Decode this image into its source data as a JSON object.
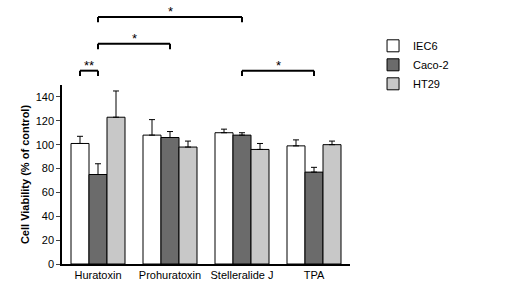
{
  "chart_data": {
    "type": "bar",
    "y_label": "Cell Viability (% of control)",
    "categories": [
      "Huratoxin",
      "Prohuratoxin",
      "Stelleralide J",
      "TPA"
    ],
    "series": [
      {
        "name": "IEC6",
        "color": "#ffffff",
        "values": [
          101,
          108,
          110,
          99
        ],
        "errors": [
          6,
          13,
          3,
          5
        ]
      },
      {
        "name": "Caco-2",
        "color": "#6b6b6b",
        "values": [
          75,
          106,
          108,
          77
        ],
        "errors": [
          9,
          5,
          2,
          4
        ]
      },
      {
        "name": "HT29",
        "color": "#c8c8c8",
        "values": [
          123,
          98,
          96,
          100
        ],
        "errors": [
          22,
          5,
          5,
          3
        ]
      }
    ],
    "ylim": [
      0,
      150
    ],
    "yticks": [
      0,
      20,
      40,
      60,
      80,
      100,
      120,
      140
    ],
    "grid": false,
    "legend": "upper right",
    "significance": [
      {
        "from": {
          "category": "Huratoxin",
          "series": "IEC6"
        },
        "to": {
          "category": "Huratoxin",
          "series": "Caco-2"
        },
        "label": "**"
      },
      {
        "from": {
          "category": "Huratoxin",
          "series": "Caco-2"
        },
        "to": {
          "category": "Prohuratoxin",
          "series": "Caco-2"
        },
        "label": "*"
      },
      {
        "from": {
          "category": "Huratoxin",
          "series": "Caco-2"
        },
        "to": {
          "category": "Stelleralide J",
          "series": "Caco-2"
        },
        "label": "*"
      },
      {
        "from": {
          "category": "Stelleralide J",
          "series": "Caco-2"
        },
        "to": {
          "category": "TPA",
          "series": "Caco-2"
        },
        "label": "*"
      }
    ]
  }
}
